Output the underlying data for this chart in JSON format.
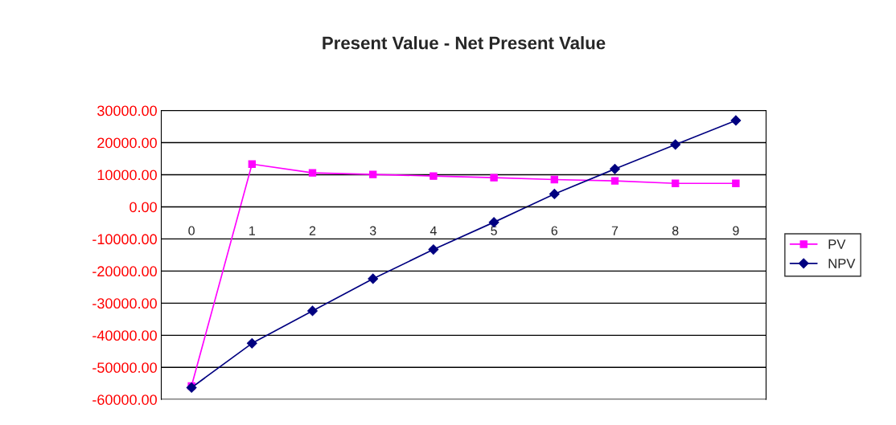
{
  "chart_data": {
    "type": "line",
    "title": "Present Value - Net Present Value",
    "categories": [
      "0",
      "1",
      "2",
      "3",
      "4",
      "5",
      "6",
      "7",
      "8",
      "9"
    ],
    "series": [
      {
        "name": "PV",
        "color": "#ff00ff",
        "marker": "square",
        "values": [
          -55800,
          13300,
          10600,
          10100,
          9600,
          9100,
          8500,
          8100,
          7300,
          7300
        ]
      },
      {
        "name": "NPV",
        "color": "#000080",
        "marker": "diamond",
        "values": [
          -56300,
          -42500,
          -32400,
          -22400,
          -13300,
          -4800,
          4000,
          11800,
          19400,
          26900
        ]
      }
    ],
    "ylim": [
      -60000,
      30000
    ],
    "yticks": [
      {
        "value": 30000,
        "label": "30000.00"
      },
      {
        "value": 20000,
        "label": "20000.00"
      },
      {
        "value": 10000,
        "label": "10000.00"
      },
      {
        "value": 0,
        "label": "0.00"
      },
      {
        "value": -10000,
        "label": "-10000.00"
      },
      {
        "value": -20000,
        "label": "-20000.00"
      },
      {
        "value": -30000,
        "label": "-30000.00"
      },
      {
        "value": -40000,
        "label": "-40000.00"
      },
      {
        "value": -50000,
        "label": "-50000.00"
      },
      {
        "value": -60000,
        "label": "-60000.00"
      }
    ],
    "grid": "y",
    "legend": "right",
    "line_style": "solid"
  }
}
